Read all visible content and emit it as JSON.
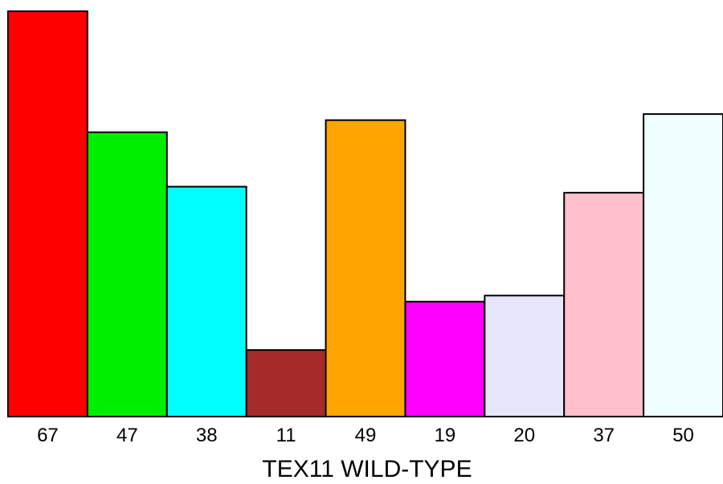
{
  "chart_data": {
    "type": "bar",
    "categories": [
      "67",
      "47",
      "38",
      "11",
      "49",
      "19",
      "20",
      "37",
      "50"
    ],
    "values": [
      67,
      47,
      38,
      11,
      49,
      19,
      20,
      37,
      50
    ],
    "colors": [
      "#ff0000",
      "#00ee00",
      "#00ffff",
      "#a52a2a",
      "#ffa500",
      "#ff00ff",
      "#e6e6fa",
      "#ffc0cb",
      "#f0ffff"
    ],
    "title": "",
    "xlabel": "TEX11 WILD-TYPE",
    "ylabel": "",
    "ylim": [
      0,
      67
    ],
    "grid": false,
    "legend": "none"
  }
}
